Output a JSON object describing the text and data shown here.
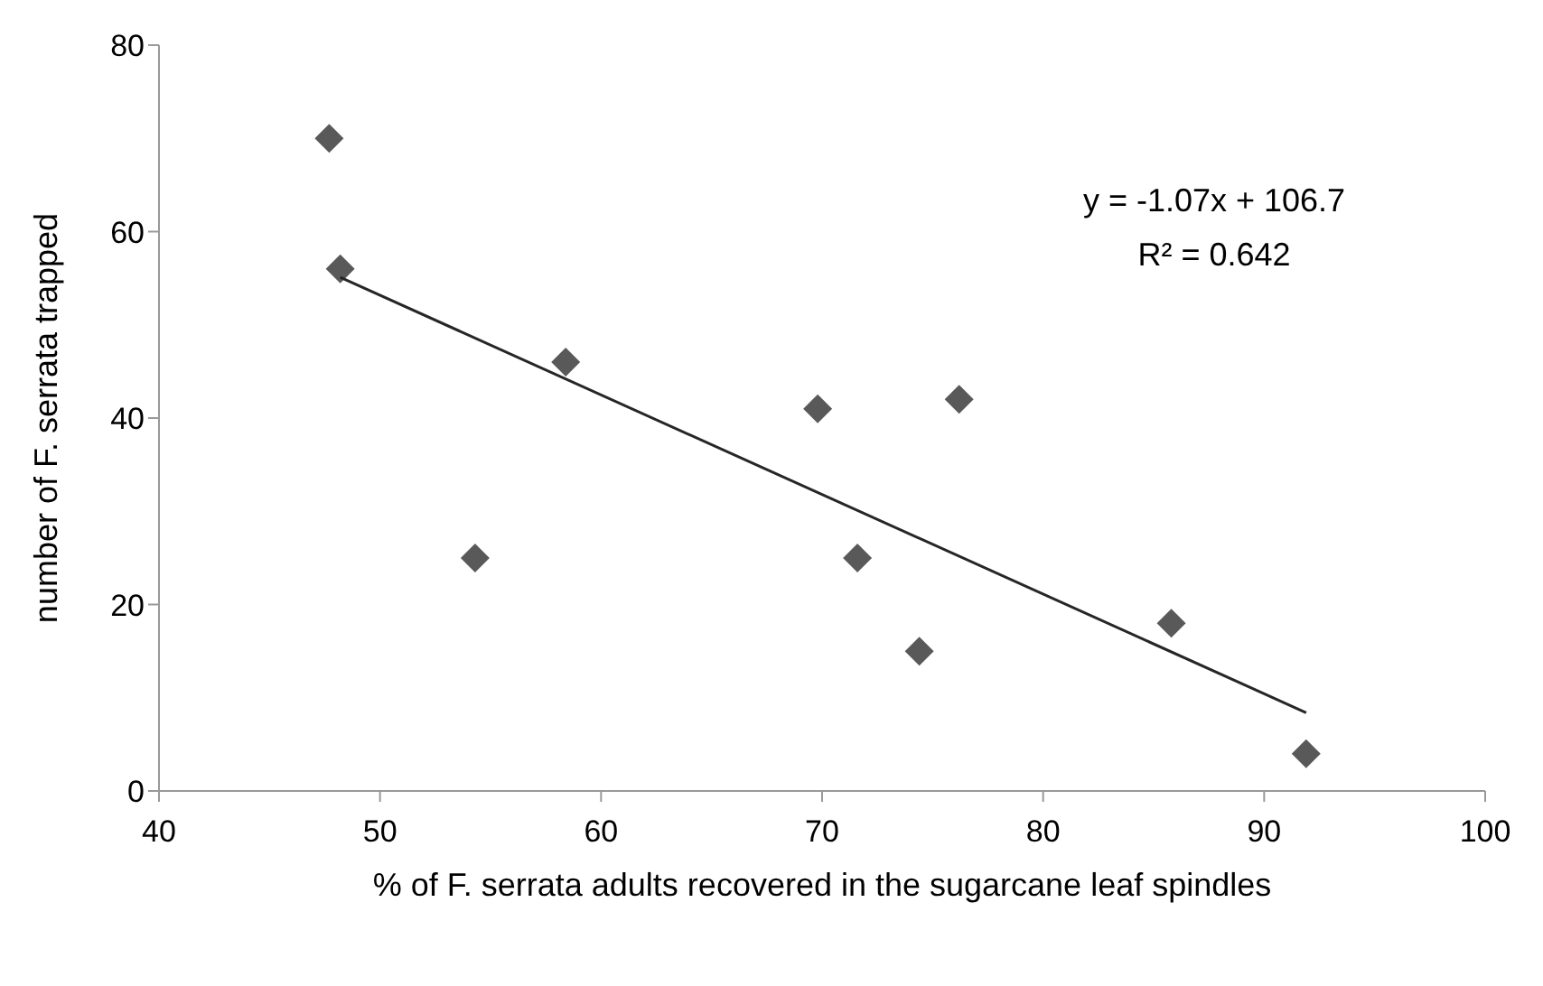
{
  "chart_data": {
    "type": "scatter",
    "xlabel": "% of F. serrata adults recovered in the sugarcane leaf spindles",
    "ylabel": "number of F. serrata trapped",
    "annotations": [
      "y = -1.07x + 106.7",
      "R² = 0.642"
    ],
    "series": [
      {
        "color": "#595959",
        "marker": "diamond",
        "x": [
          47.7,
          48.2,
          58.4,
          54.3,
          69.8,
          76.2,
          71.6,
          74.4,
          85.8,
          91.9
        ],
        "values": [
          70,
          56,
          46,
          25,
          41,
          42,
          25,
          15,
          18,
          4
        ]
      },
      {
        "type": "line",
        "color": "#262626",
        "marker": "none",
        "x": [
          48.2,
          91.9
        ],
        "values": [
          55.1,
          8.4
        ]
      }
    ],
    "xlim": [
      40,
      100
    ],
    "xticks": [
      40,
      50,
      60,
      70,
      80,
      90,
      100
    ],
    "ylim": [
      0,
      80
    ],
    "yticks": [
      0,
      20,
      40,
      60,
      80
    ],
    "grid": false,
    "legend": false
  }
}
